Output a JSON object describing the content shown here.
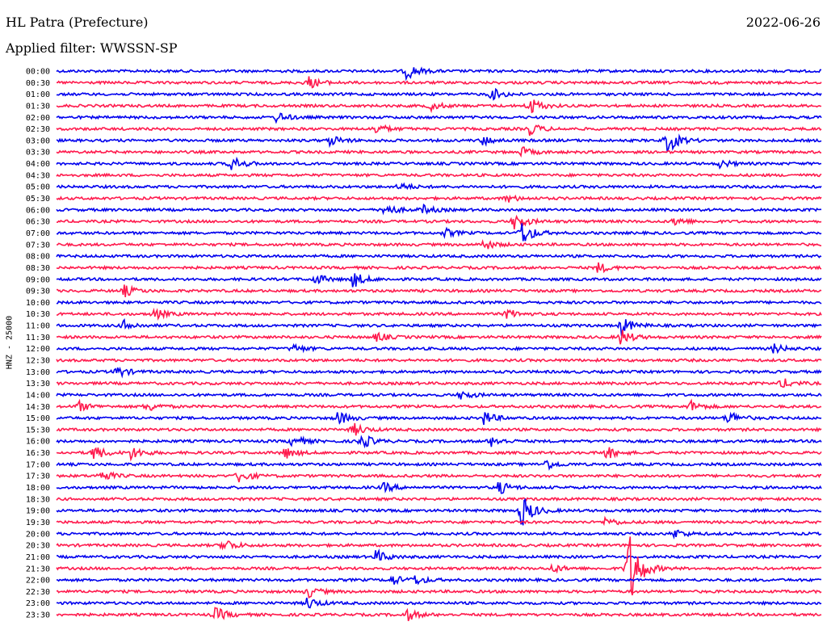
{
  "header": {
    "station": "HL Patra (Prefecture)",
    "date": "2022-06-26",
    "filter": "Applied filter: WWSSN-SP",
    "channel": "HNZ - 25000"
  },
  "colors": {
    "even_row": "#0000ee",
    "odd_row": "#ff1a4d"
  },
  "chart_data": {
    "type": "line",
    "title": "HL Patra (Prefecture)",
    "subtitle": "Applied filter: WWSSN-SP",
    "ylabel": "HNZ - 25000",
    "xlabel": "",
    "categories": [
      "00:00",
      "00:30",
      "01:00",
      "01:30",
      "02:00",
      "02:30",
      "03:00",
      "03:30",
      "04:00",
      "04:30",
      "05:00",
      "05:30",
      "06:00",
      "06:30",
      "07:00",
      "07:30",
      "08:00",
      "08:30",
      "09:00",
      "09:30",
      "10:00",
      "10:30",
      "11:00",
      "11:30",
      "12:00",
      "12:30",
      "13:00",
      "13:30",
      "14:00",
      "14:30",
      "15:00",
      "15:30",
      "16:00",
      "16:30",
      "17:00",
      "17:30",
      "18:00",
      "18:30",
      "19:00",
      "19:30",
      "20:00",
      "20:30",
      "21:00",
      "21:30",
      "22:00",
      "22:30",
      "23:00",
      "23:30"
    ],
    "events": [
      {
        "row": "00:00",
        "t": 0.46,
        "amp": 0.6
      },
      {
        "row": "00:30",
        "t": 0.33,
        "amp": 0.5
      },
      {
        "row": "01:00",
        "t": 0.57,
        "amp": 0.5
      },
      {
        "row": "01:30",
        "t": 0.62,
        "amp": 0.7
      },
      {
        "row": "01:30",
        "t": 0.49,
        "amp": 0.35
      },
      {
        "row": "02:00",
        "t": 0.29,
        "amp": 0.4
      },
      {
        "row": "02:30",
        "t": 0.42,
        "amp": 0.4
      },
      {
        "row": "02:30",
        "t": 0.62,
        "amp": 0.5
      },
      {
        "row": "03:00",
        "t": 0.36,
        "amp": 0.4
      },
      {
        "row": "03:00",
        "t": 0.56,
        "amp": 0.35
      },
      {
        "row": "03:00",
        "t": 0.8,
        "amp": 1.0
      },
      {
        "row": "03:30",
        "t": 0.61,
        "amp": 0.35
      },
      {
        "row": "04:00",
        "t": 0.23,
        "amp": 0.6
      },
      {
        "row": "04:00",
        "t": 0.87,
        "amp": 0.3
      },
      {
        "row": "05:00",
        "t": 0.45,
        "amp": 0.3
      },
      {
        "row": "05:30",
        "t": 0.59,
        "amp": 0.3
      },
      {
        "row": "06:00",
        "t": 0.43,
        "amp": 0.5
      },
      {
        "row": "06:00",
        "t": 0.48,
        "amp": 0.35
      },
      {
        "row": "06:30",
        "t": 0.6,
        "amp": 0.7
      },
      {
        "row": "06:30",
        "t": 0.81,
        "amp": 0.35
      },
      {
        "row": "07:00",
        "t": 0.61,
        "amp": 1.0
      },
      {
        "row": "07:00",
        "t": 0.51,
        "amp": 0.3
      },
      {
        "row": "07:30",
        "t": 0.56,
        "amp": 0.4
      },
      {
        "row": "08:30",
        "t": 0.71,
        "amp": 0.4
      },
      {
        "row": "09:00",
        "t": 0.34,
        "amp": 0.4
      },
      {
        "row": "09:00",
        "t": 0.39,
        "amp": 0.6
      },
      {
        "row": "09:30",
        "t": 0.09,
        "amp": 0.45
      },
      {
        "row": "10:30",
        "t": 0.13,
        "amp": 0.4
      },
      {
        "row": "10:30",
        "t": 0.59,
        "amp": 0.4
      },
      {
        "row": "11:00",
        "t": 0.09,
        "amp": 0.4
      },
      {
        "row": "11:00",
        "t": 0.74,
        "amp": 0.7
      },
      {
        "row": "11:30",
        "t": 0.74,
        "amp": 0.6
      },
      {
        "row": "11:30",
        "t": 0.42,
        "amp": 0.35
      },
      {
        "row": "12:00",
        "t": 0.31,
        "amp": 0.35
      },
      {
        "row": "12:00",
        "t": 0.94,
        "amp": 0.35
      },
      {
        "row": "13:00",
        "t": 0.08,
        "amp": 0.45
      },
      {
        "row": "13:30",
        "t": 0.95,
        "amp": 0.4
      },
      {
        "row": "14:00",
        "t": 0.53,
        "amp": 0.35
      },
      {
        "row": "14:30",
        "t": 0.03,
        "amp": 0.4
      },
      {
        "row": "14:30",
        "t": 0.12,
        "amp": 0.4
      },
      {
        "row": "14:30",
        "t": 0.83,
        "amp": 0.45
      },
      {
        "row": "15:00",
        "t": 0.37,
        "amp": 0.5
      },
      {
        "row": "15:00",
        "t": 0.56,
        "amp": 0.55
      },
      {
        "row": "15:00",
        "t": 0.88,
        "amp": 0.55
      },
      {
        "row": "15:30",
        "t": 0.39,
        "amp": 0.5
      },
      {
        "row": "16:00",
        "t": 0.31,
        "amp": 0.5
      },
      {
        "row": "16:00",
        "t": 0.4,
        "amp": 0.6
      },
      {
        "row": "16:00",
        "t": 0.57,
        "amp": 0.4
      },
      {
        "row": "16:30",
        "t": 0.05,
        "amp": 0.6
      },
      {
        "row": "16:30",
        "t": 0.1,
        "amp": 0.5
      },
      {
        "row": "16:30",
        "t": 0.3,
        "amp": 0.45
      },
      {
        "row": "16:30",
        "t": 0.72,
        "amp": 0.5
      },
      {
        "row": "17:00",
        "t": 0.64,
        "amp": 0.45
      },
      {
        "row": "17:30",
        "t": 0.06,
        "amp": 0.45
      },
      {
        "row": "17:30",
        "t": 0.24,
        "amp": 0.55
      },
      {
        "row": "18:00",
        "t": 0.43,
        "amp": 0.35
      },
      {
        "row": "18:00",
        "t": 0.58,
        "amp": 0.5
      },
      {
        "row": "19:00",
        "t": 0.61,
        "amp": 1.3
      },
      {
        "row": "19:30",
        "t": 0.72,
        "amp": 0.35
      },
      {
        "row": "20:00",
        "t": 0.81,
        "amp": 0.35
      },
      {
        "row": "20:30",
        "t": 0.22,
        "amp": 0.55
      },
      {
        "row": "21:00",
        "t": 0.42,
        "amp": 0.5
      },
      {
        "row": "21:30",
        "t": 0.75,
        "amp": 3.2
      },
      {
        "row": "21:30",
        "t": 0.65,
        "amp": 0.3
      },
      {
        "row": "22:00",
        "t": 0.44,
        "amp": 0.4
      },
      {
        "row": "22:00",
        "t": 0.47,
        "amp": 0.35
      },
      {
        "row": "22:30",
        "t": 0.33,
        "amp": 0.45
      },
      {
        "row": "23:00",
        "t": 0.33,
        "amp": 0.45
      },
      {
        "row": "23:30",
        "t": 0.21,
        "amp": 0.55
      },
      {
        "row": "23:30",
        "t": 0.46,
        "amp": 0.45
      }
    ]
  }
}
